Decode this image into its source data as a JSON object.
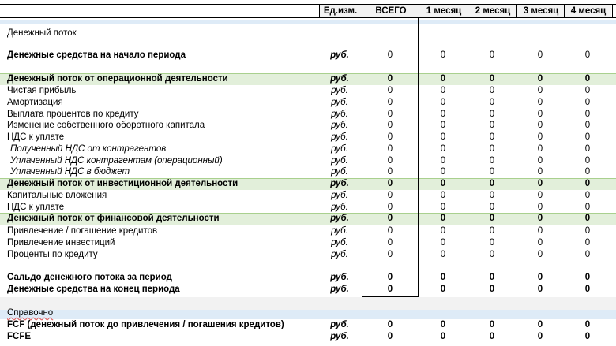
{
  "header": {
    "unit": "Ед.изм.",
    "total": "ВСЕГО",
    "months": [
      "1 месяц",
      "2 месяц",
      "3 месяц",
      "4 месяц"
    ]
  },
  "section_title": "Денежный поток",
  "rows": [
    {
      "label": "Денежные средства на начало периода",
      "unit": "руб.",
      "values": [
        "0",
        "0",
        "0",
        "0",
        "0"
      ]
    },
    {
      "label": "Денежный поток от операционной деятельности",
      "unit": "руб.",
      "values": [
        "0",
        "0",
        "0",
        "0",
        "0"
      ]
    },
    {
      "label": "Чистая прибыль",
      "unit": "руб.",
      "values": [
        "0",
        "0",
        "0",
        "0",
        "0"
      ]
    },
    {
      "label": "Амортизация",
      "unit": "руб.",
      "values": [
        "0",
        "0",
        "0",
        "0",
        "0"
      ]
    },
    {
      "label": "Выплата процентов по кредиту",
      "unit": "руб.",
      "values": [
        "0",
        "0",
        "0",
        "0",
        "0"
      ]
    },
    {
      "label": "Изменение собственного оборотного капитала",
      "unit": "руб.",
      "values": [
        "0",
        "0",
        "0",
        "0",
        "0"
      ]
    },
    {
      "label": "НДС к уплате",
      "unit": "руб.",
      "values": [
        "0",
        "0",
        "0",
        "0",
        "0"
      ]
    },
    {
      "label": "Полученный НДС от контрагентов",
      "unit": "руб.",
      "values": [
        "0",
        "0",
        "0",
        "0",
        "0"
      ]
    },
    {
      "label": "Уплаченный НДС контрагентам (операционный)",
      "unit": "руб.",
      "values": [
        "0",
        "0",
        "0",
        "0",
        "0"
      ]
    },
    {
      "label": "Уплаченный НДС в бюджет",
      "unit": "руб.",
      "values": [
        "0",
        "0",
        "0",
        "0",
        "0"
      ]
    },
    {
      "label": "Денежный поток от инвестиционной деятельности",
      "unit": "руб.",
      "values": [
        "0",
        "0",
        "0",
        "0",
        "0"
      ]
    },
    {
      "label": "Капитальные вложения",
      "unit": "руб.",
      "values": [
        "0",
        "0",
        "0",
        "0",
        "0"
      ]
    },
    {
      "label": "НДС к уплате",
      "unit": "руб.",
      "values": [
        "0",
        "0",
        "0",
        "0",
        "0"
      ]
    },
    {
      "label": "Денежный поток от финансовой деятельности",
      "unit": "руб.",
      "values": [
        "0",
        "0",
        "0",
        "0",
        "0"
      ]
    },
    {
      "label": "Привлечение / погашение кредитов",
      "unit": "руб.",
      "values": [
        "0",
        "0",
        "0",
        "0",
        "0"
      ]
    },
    {
      "label": "Привлечение инвестиций",
      "unit": "руб.",
      "values": [
        "0",
        "0",
        "0",
        "0",
        "0"
      ]
    },
    {
      "label": "Проценты по кредиту",
      "unit": "руб.",
      "values": [
        "0",
        "0",
        "0",
        "0",
        "0"
      ]
    },
    {
      "label": "Сальдо денежного потока за период",
      "unit": "руб.",
      "values": [
        "0",
        "0",
        "0",
        "0",
        "0"
      ]
    },
    {
      "label": "Денежные средства на конец периода",
      "unit": "руб.",
      "values": [
        "0",
        "0",
        "0",
        "0",
        "0"
      ]
    }
  ],
  "reference_title": "Справочно",
  "reference_rows": [
    {
      "label": "FCF (денежный поток до привлечения / погашения кредитов)",
      "unit": "руб.",
      "values": [
        "0",
        "0",
        "0",
        "0",
        "0"
      ]
    },
    {
      "label": "FCFE",
      "unit": "руб.",
      "values": [
        "0",
        "0",
        "0",
        "0",
        "0"
      ]
    }
  ]
}
